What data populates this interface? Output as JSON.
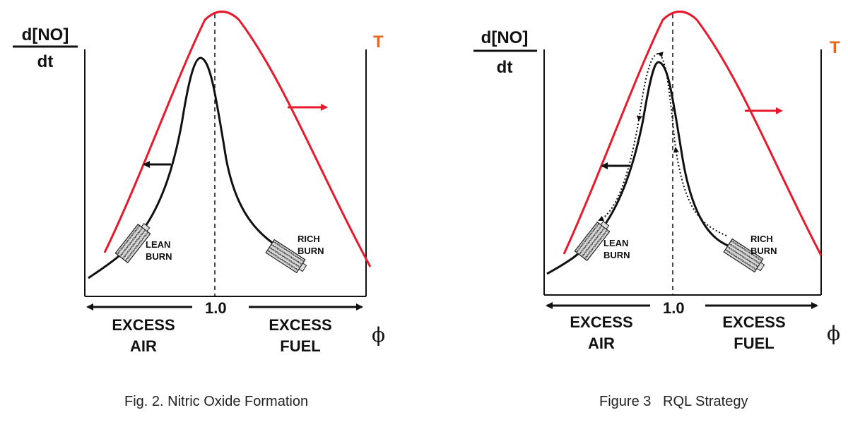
{
  "colors": {
    "temperature": "#e8192c",
    "ink": "#111111",
    "burner_fill": "#c8c8c8"
  },
  "figures": [
    {
      "y_label_top": "d[NO]",
      "y_label_bottom": "dt",
      "t_label": "T",
      "stoich_label": "1.0",
      "lean_label_1": "LEAN",
      "lean_label_2": "BURN",
      "rich_label_1": "RICH",
      "rich_label_2": "BURN",
      "left_axis_1": "EXCESS",
      "left_axis_2": "AIR",
      "right_axis_1": "EXCESS",
      "right_axis_2": "FUEL",
      "x_symbol": "ϕ",
      "caption": "Fig. 2. Nitric Oxide Formation",
      "icons": [
        "lean-burner-icon",
        "rich-burner-icon",
        "decrease-arrow-icon",
        "temperature-arrow-icon"
      ]
    },
    {
      "y_label_top": "d[NO]",
      "y_label_bottom": "dt",
      "t_label": "T",
      "stoich_label": "1.0",
      "lean_label_1": "LEAN",
      "lean_label_2": "BURN",
      "rich_label_1": "RICH",
      "rich_label_2": "BURN",
      "left_axis_1": "EXCESS",
      "left_axis_2": "AIR",
      "right_axis_1": "EXCESS",
      "right_axis_2": "FUEL",
      "x_symbol": "ϕ",
      "caption": "Figure 3   RQL Strategy",
      "icons": [
        "lean-burner-icon",
        "rich-burner-icon",
        "decrease-arrow-icon",
        "temperature-arrow-icon",
        "rql-path-dotted-icon"
      ]
    }
  ]
}
